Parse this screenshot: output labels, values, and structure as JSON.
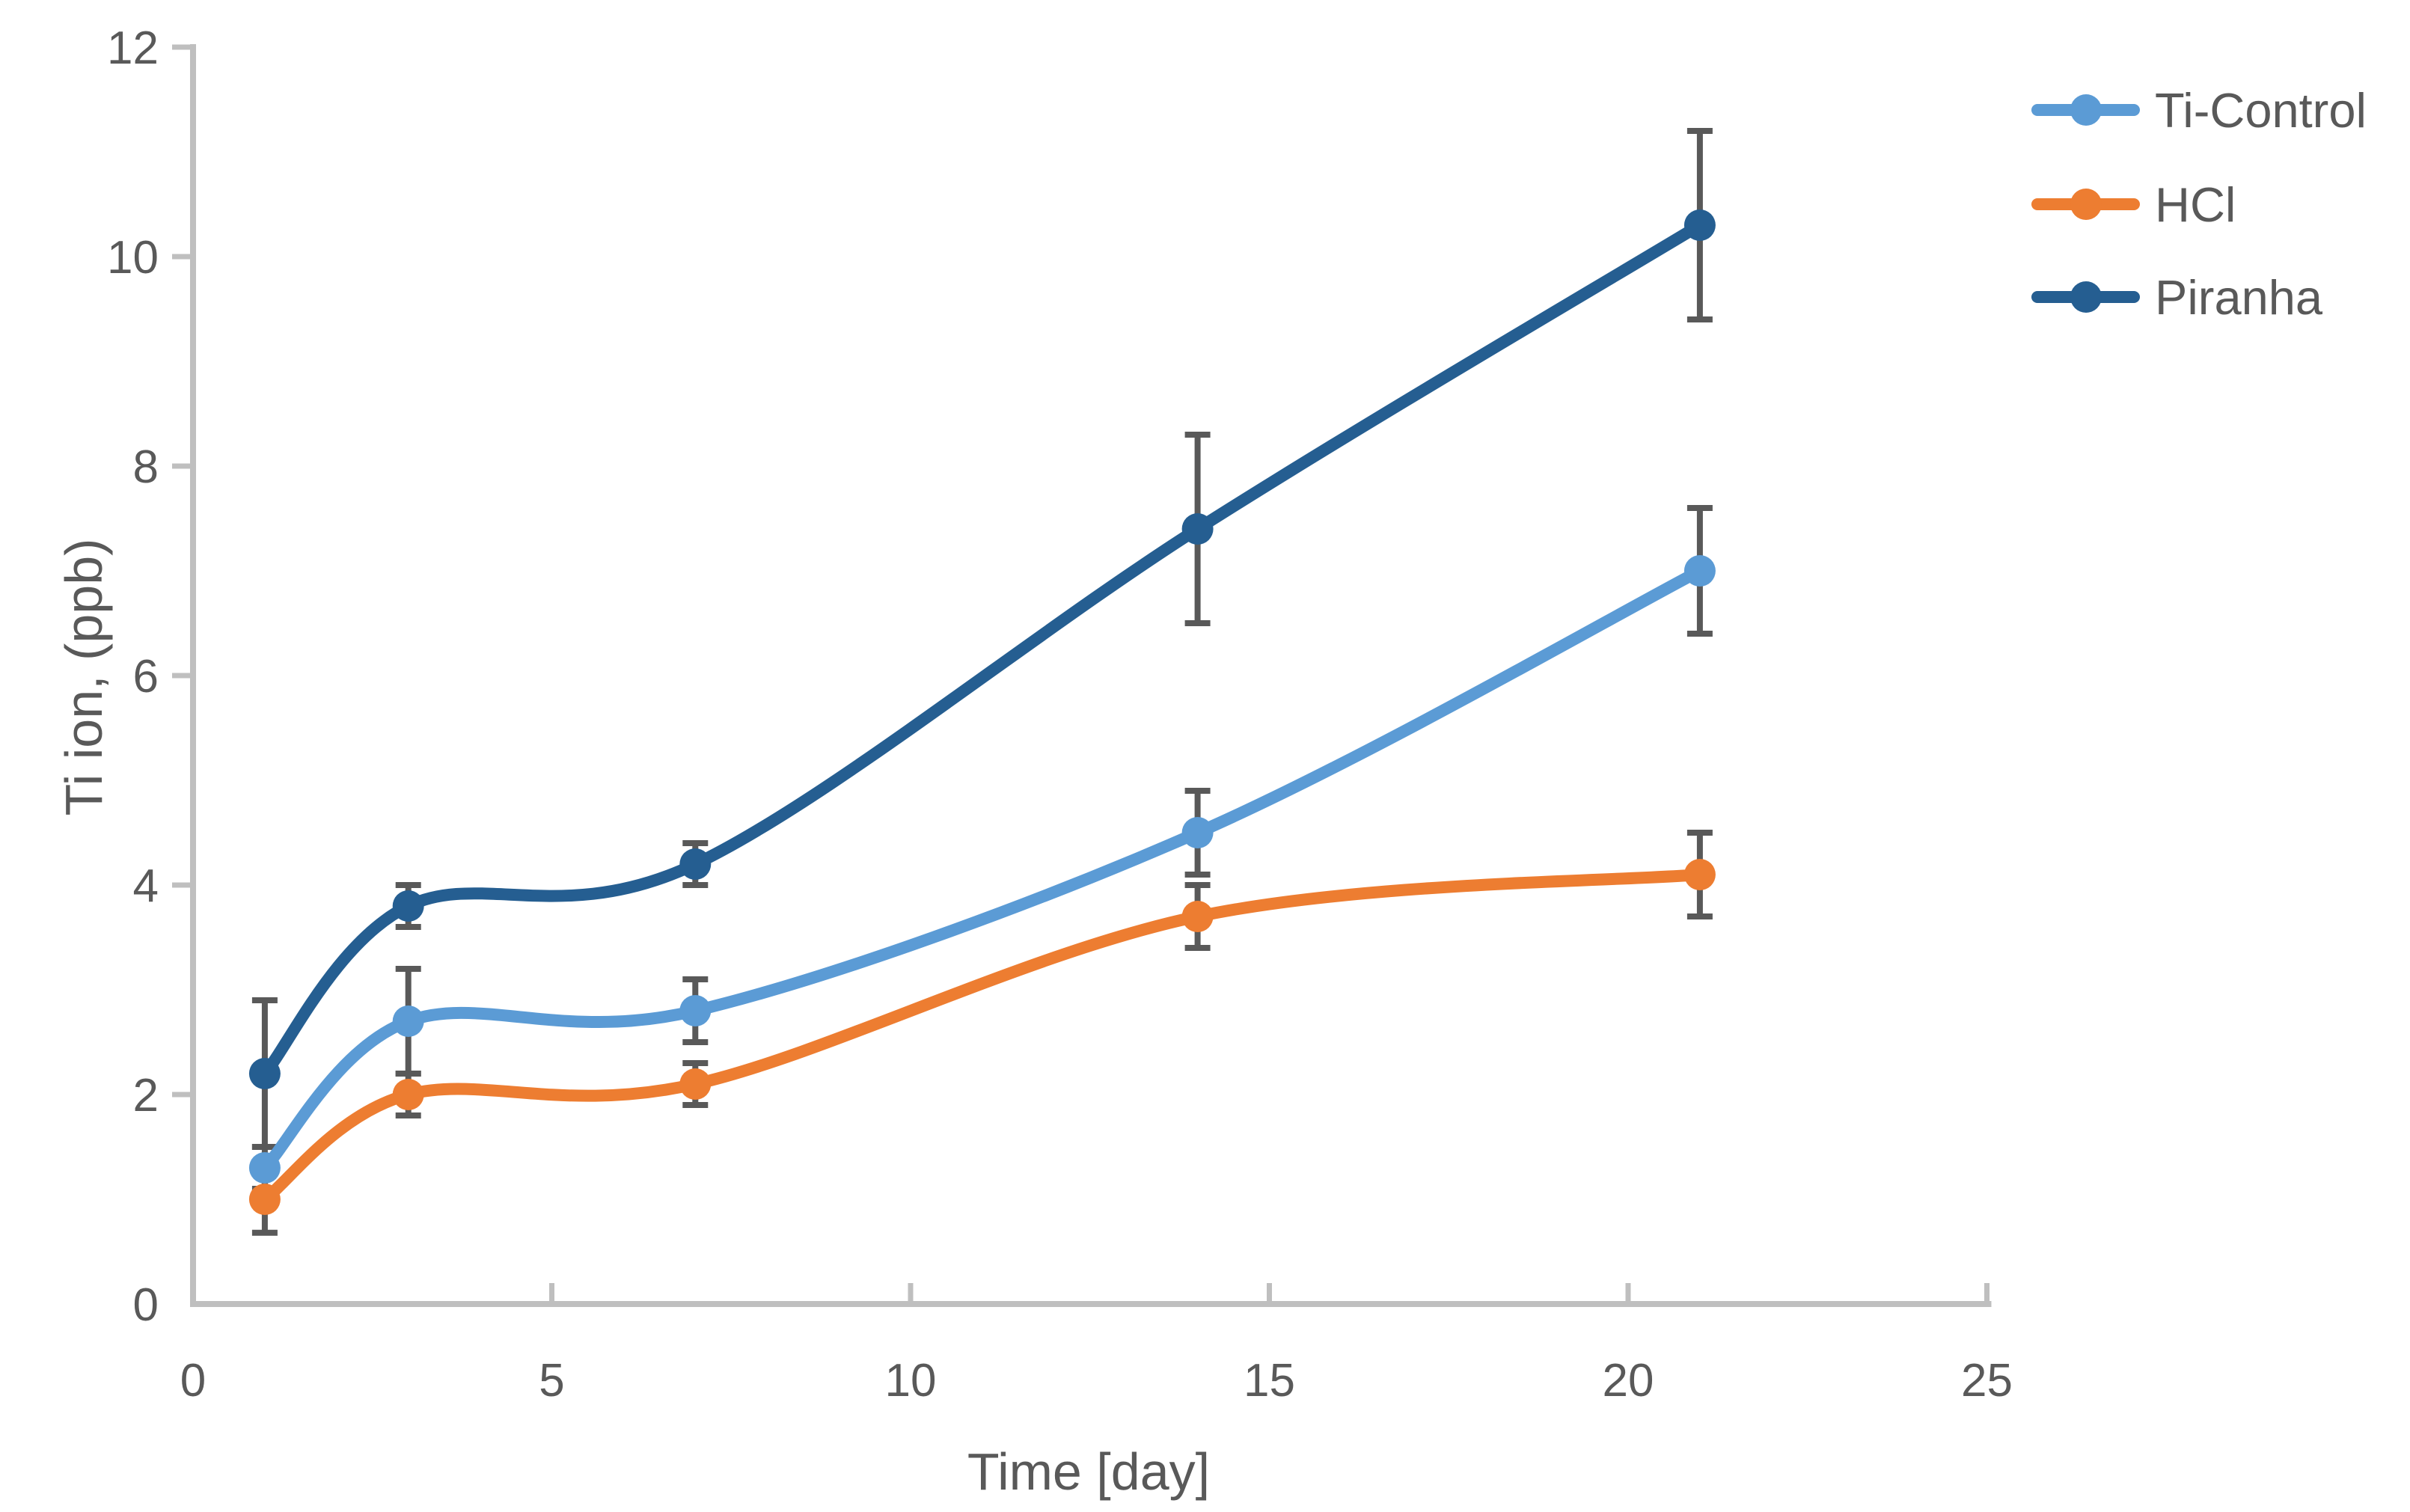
{
  "chart_data": {
    "type": "line",
    "title": "",
    "xlabel": "Time [day]",
    "ylabel": "Ti ion, (ppb)",
    "x": [
      1,
      3,
      7,
      14,
      21
    ],
    "xlim": [
      0,
      25
    ],
    "ylim": [
      0,
      12
    ],
    "x_ticks": [
      0,
      5,
      10,
      15,
      20,
      25
    ],
    "y_ticks": [
      0,
      2,
      4,
      6,
      8,
      10,
      12
    ],
    "grid": false,
    "smooth_lines": true,
    "legend_position": "top-right",
    "series": [
      {
        "name": "Ti-Control",
        "color": "#5B9BD5",
        "values": [
          1.3,
          2.7,
          2.8,
          4.5,
          7.0
        ],
        "errors": [
          0.2,
          0.5,
          0.3,
          0.4,
          0.6
        ]
      },
      {
        "name": "HCl",
        "color": "#ED7D31",
        "values": [
          1.0,
          2.0,
          2.1,
          3.7,
          4.1
        ],
        "errors": [
          0.32,
          0.2,
          0.2,
          0.3,
          0.4
        ]
      },
      {
        "name": "Piranha",
        "color": "#255E91",
        "values": [
          2.2,
          3.8,
          4.2,
          7.4,
          10.3
        ],
        "errors": [
          0.7,
          0.2,
          0.2,
          0.9,
          0.9
        ]
      }
    ]
  },
  "axes": {
    "x_title": "Time [day]",
    "y_title": "Ti ion, (ppb)",
    "x_tick_labels": [
      "0",
      "5",
      "10",
      "15",
      "20",
      "25"
    ],
    "y_tick_labels": [
      "0",
      "2",
      "4",
      "6",
      "8",
      "10",
      "12"
    ]
  },
  "legend": {
    "items": [
      {
        "label": "Ti-Control",
        "color": "#5B9BD5"
      },
      {
        "label": "HCl",
        "color": "#ED7D31"
      },
      {
        "label": "Piranha",
        "color": "#255E91"
      }
    ]
  },
  "style": {
    "axis_color": "#BFBFBF",
    "text_color": "#595959",
    "error_bar_color": "#595959",
    "background": "#FFFFFF"
  }
}
